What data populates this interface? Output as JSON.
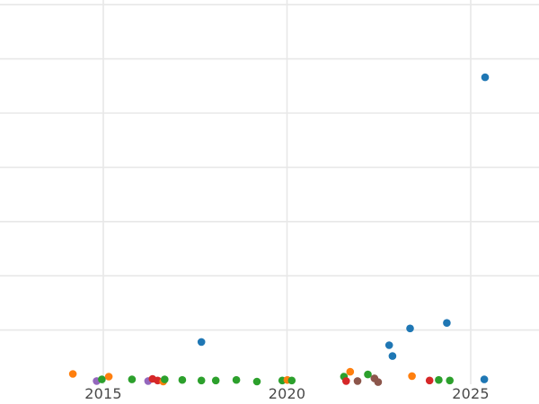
{
  "chart_data": {
    "type": "scatter",
    "title": "",
    "xlabel": "",
    "ylabel": "",
    "x_ticks": [
      2015,
      2020,
      2025
    ],
    "x_tick_labels": [
      "2015",
      "2020",
      "2025"
    ],
    "xlim": [
      2012.2,
      2026.9
    ],
    "ylim": [
      0,
      7.1
    ],
    "y_gridlines": [
      1,
      2,
      3,
      4,
      5,
      6,
      7
    ],
    "y_axis_note": "y tick labels are not visible in the screenshot; y values estimated in gridline units (1 unit = one gridline spacing, baseline 0 at bottom)",
    "grid": true,
    "legend_position": "none",
    "marker": "circle",
    "series": [
      {
        "name": "blue",
        "color": "#1f77b4",
        "points": [
          {
            "x": 2017.67,
            "y": 0.78
          },
          {
            "x": 2022.78,
            "y": 0.72
          },
          {
            "x": 2022.87,
            "y": 0.52
          },
          {
            "x": 2023.35,
            "y": 1.03
          },
          {
            "x": 2024.35,
            "y": 1.13
          },
          {
            "x": 2025.37,
            "y": 0.09
          },
          {
            "x": 2025.39,
            "y": 5.66
          }
        ]
      },
      {
        "name": "orange",
        "color": "#ff7f0e",
        "points": [
          {
            "x": 2014.17,
            "y": 0.19
          },
          {
            "x": 2015.15,
            "y": 0.14
          },
          {
            "x": 2016.63,
            "y": 0.05
          },
          {
            "x": 2020.01,
            "y": 0.08
          },
          {
            "x": 2021.72,
            "y": 0.23
          },
          {
            "x": 2023.4,
            "y": 0.15
          }
        ]
      },
      {
        "name": "green",
        "color": "#2ca02c",
        "points": [
          {
            "x": 2014.96,
            "y": 0.09
          },
          {
            "x": 2015.78,
            "y": 0.09
          },
          {
            "x": 2016.67,
            "y": 0.09
          },
          {
            "x": 2017.15,
            "y": 0.08
          },
          {
            "x": 2017.67,
            "y": 0.07
          },
          {
            "x": 2018.06,
            "y": 0.07
          },
          {
            "x": 2018.62,
            "y": 0.08
          },
          {
            "x": 2019.18,
            "y": 0.05
          },
          {
            "x": 2019.87,
            "y": 0.07
          },
          {
            "x": 2020.13,
            "y": 0.07
          },
          {
            "x": 2021.55,
            "y": 0.14
          },
          {
            "x": 2022.2,
            "y": 0.18
          },
          {
            "x": 2024.13,
            "y": 0.08
          },
          {
            "x": 2024.43,
            "y": 0.07
          }
        ]
      },
      {
        "name": "red",
        "color": "#d62728",
        "points": [
          {
            "x": 2016.34,
            "y": 0.1
          },
          {
            "x": 2016.48,
            "y": 0.07
          },
          {
            "x": 2021.61,
            "y": 0.06
          },
          {
            "x": 2023.88,
            "y": 0.07
          }
        ]
      },
      {
        "name": "purple",
        "color": "#9467bd",
        "points": [
          {
            "x": 2014.82,
            "y": 0.06
          },
          {
            "x": 2016.22,
            "y": 0.06
          }
        ]
      },
      {
        "name": "brown",
        "color": "#8c564b",
        "points": [
          {
            "x": 2021.92,
            "y": 0.06
          },
          {
            "x": 2022.38,
            "y": 0.11
          },
          {
            "x": 2022.48,
            "y": 0.04
          }
        ]
      }
    ]
  },
  "style": {
    "background_color": "#ffffff",
    "gridline_color": "#e8e8e8",
    "tick_label_color": "#494949",
    "palette": {
      "blue": "#1f77b4",
      "orange": "#ff7f0e",
      "green": "#2ca02c",
      "red": "#d62728",
      "purple": "#9467bd",
      "brown": "#8c564b"
    }
  }
}
